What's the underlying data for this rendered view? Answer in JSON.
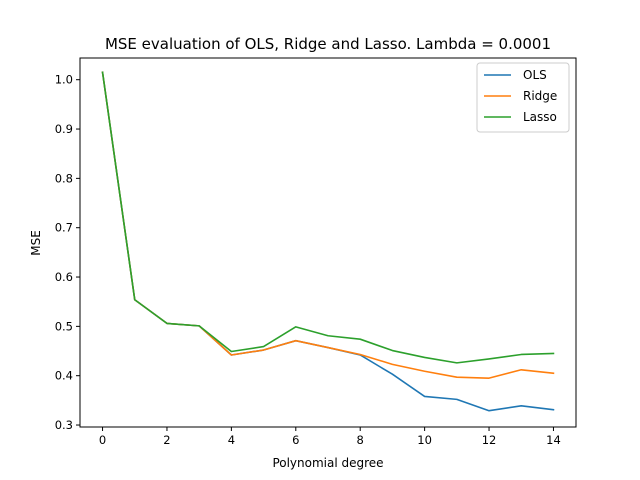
{
  "chart_data": {
    "type": "line",
    "title": "MSE evaluation of OLS, Ridge and Lasso. Lambda = 0.0001",
    "xlabel": "Polynomial degree",
    "ylabel": "MSE",
    "x": [
      0,
      1,
      2,
      3,
      4,
      5,
      6,
      7,
      8,
      9,
      10,
      11,
      12,
      13,
      14
    ],
    "xlim": [
      -0.7,
      14.7
    ],
    "ylim": [
      0.296,
      1.044
    ],
    "xticks": [
      0,
      2,
      4,
      6,
      8,
      10,
      12,
      14
    ],
    "yticks": [
      0.3,
      0.4,
      0.5,
      0.6,
      0.7,
      0.8,
      0.9,
      1.0
    ],
    "xtick_labels": [
      "0",
      "2",
      "4",
      "6",
      "8",
      "10",
      "12",
      "14"
    ],
    "ytick_labels": [
      "0.3",
      "0.4",
      "0.5",
      "0.6",
      "0.7",
      "0.8",
      "0.9",
      "1.0"
    ],
    "grid": false,
    "legend_position": "top-right",
    "series": [
      {
        "name": "OLS",
        "color": "#1f77b4",
        "values": [
          1.015,
          0.554,
          0.506,
          0.501,
          0.442,
          0.452,
          0.471,
          0.457,
          0.442,
          0.403,
          0.358,
          0.352,
          0.329,
          0.339,
          0.331
        ]
      },
      {
        "name": "Ridge",
        "color": "#ff7f0e",
        "values": [
          1.015,
          0.554,
          0.506,
          0.501,
          0.442,
          0.452,
          0.471,
          0.457,
          0.443,
          0.423,
          0.409,
          0.397,
          0.395,
          0.412,
          0.405
        ]
      },
      {
        "name": "Lasso",
        "color": "#2ca02c",
        "values": [
          1.015,
          0.554,
          0.506,
          0.501,
          0.449,
          0.459,
          0.499,
          0.481,
          0.474,
          0.451,
          0.437,
          0.426,
          0.434,
          0.443,
          0.445
        ]
      }
    ]
  }
}
